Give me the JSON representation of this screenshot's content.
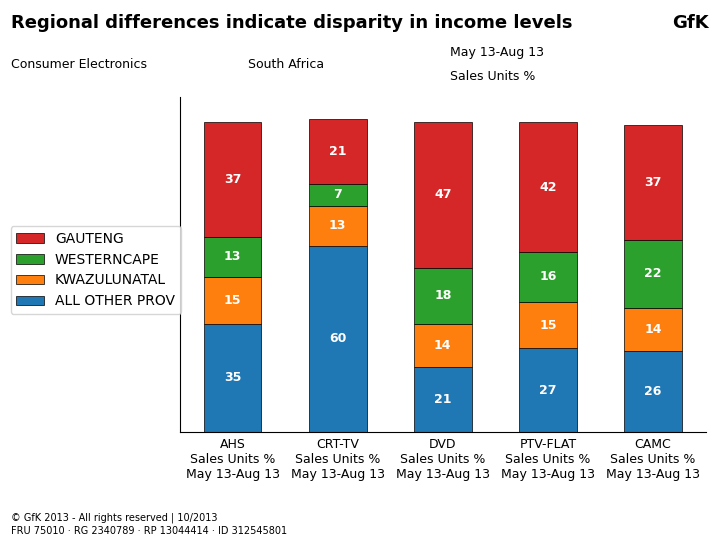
{
  "chart_data": {
    "type": "bar",
    "stacked": true,
    "title": "Regional differences indicate disparity in income levels",
    "annotations": [
      "Consumer Electronics",
      "South Africa",
      "May 13-Aug 13",
      "Sales Units %",
      "GfK",
      "© GfK 2013 - All rights reserved | 10/2013",
      "FRU 75010 · RG 2340789 · RP 13044414 · ID 312545801"
    ],
    "categories": [
      "AHS\nSales Units %\nMay 13-Aug 13",
      "CRT-TV\nSales Units %\nMay 13-Aug 13",
      "DVD\nSales Units %\nMay 13-Aug 13",
      "PTV-FLAT\nSales Units %\nMay 13-Aug 13",
      "CAMC\nSales Units %\nMay 13-Aug 13"
    ],
    "series": [
      {
        "name": "ALL OTHER PROV",
        "values": [
          35,
          60,
          21,
          27,
          26
        ]
      },
      {
        "name": "KWAZULUNATAL",
        "values": [
          15,
          13,
          14,
          15,
          14
        ]
      },
      {
        "name": "WESTERNCAPE",
        "values": [
          13,
          7,
          18,
          16,
          22
        ]
      },
      {
        "name": "GAUTENG",
        "values": [
          37,
          21,
          47,
          42,
          37
        ]
      }
    ],
    "ylim": [
      0,
      108
    ],
    "tick_labels": "x",
    "data_labels": true,
    "legend": "center left",
    "grid": false
  }
}
